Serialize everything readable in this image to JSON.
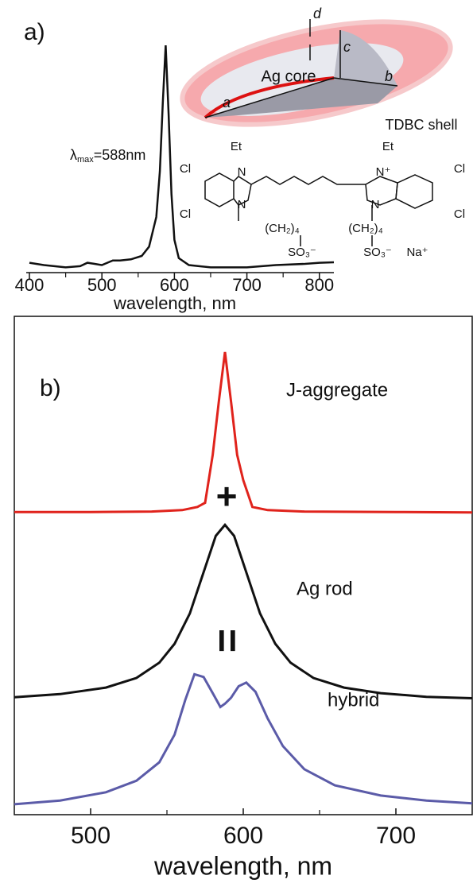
{
  "chart_data": [
    {
      "type": "line",
      "panel_label": "a)",
      "xlabel": "wavelength, nm",
      "xlim": [
        400,
        820
      ],
      "ylim": [
        0,
        1
      ],
      "xticks": [
        400,
        500,
        600,
        700,
        800
      ],
      "xminorticks": [
        450,
        550,
        650,
        750
      ],
      "annotation": {
        "symbol": "λ",
        "sub": "max",
        "text": "=588nm"
      },
      "x": [
        400,
        420,
        450,
        470,
        480,
        490,
        500,
        515,
        525,
        540,
        555,
        565,
        575,
        580,
        584,
        588,
        592,
        596,
        600,
        606,
        620,
        650,
        700,
        740,
        780,
        800,
        820
      ],
      "series": [
        {
          "color": "#111111",
          "values": [
            0.05,
            0.04,
            0.03,
            0.035,
            0.05,
            0.045,
            0.04,
            0.06,
            0.06,
            0.065,
            0.08,
            0.12,
            0.25,
            0.45,
            0.75,
            1.0,
            0.7,
            0.35,
            0.15,
            0.07,
            0.04,
            0.03,
            0.03,
            0.04,
            0.045,
            0.05,
            0.052
          ]
        }
      ]
    },
    {
      "type": "line",
      "panel_label": "b)",
      "xlabel": "wavelength, nm",
      "xlim": [
        450,
        750
      ],
      "ylim": [
        0,
        1
      ],
      "xticks": [
        500,
        600,
        700
      ],
      "xminorticks": [
        550,
        650
      ],
      "operators": [
        "+",
        "="
      ],
      "series": [
        {
          "name": "J-aggregate",
          "color": "#e0231c",
          "x": [
            450,
            500,
            540,
            560,
            570,
            575,
            580,
            584,
            588,
            592,
            596,
            600,
            606,
            616,
            640,
            700,
            750
          ],
          "values": [
            0.648,
            0.648,
            0.649,
            0.652,
            0.659,
            0.668,
            0.772,
            0.888,
            0.995,
            0.888,
            0.772,
            0.717,
            0.659,
            0.652,
            0.649,
            0.648,
            0.647
          ]
        },
        {
          "name": "Ag rod",
          "color": "#111111",
          "x": [
            450,
            480,
            510,
            530,
            545,
            555,
            565,
            575,
            582,
            588,
            594,
            601,
            611,
            621,
            631,
            646,
            666,
            690,
            720,
            750
          ],
          "values": [
            0.246,
            0.253,
            0.267,
            0.288,
            0.321,
            0.362,
            0.428,
            0.527,
            0.596,
            0.62,
            0.596,
            0.527,
            0.428,
            0.362,
            0.321,
            0.288,
            0.267,
            0.255,
            0.247,
            0.244
          ]
        },
        {
          "name": "hybrid",
          "color": "#5b5ba8",
          "x": [
            450,
            480,
            510,
            530,
            545,
            555,
            562,
            568,
            574,
            580,
            585,
            588,
            592,
            597,
            602,
            608,
            616,
            626,
            640,
            660,
            690,
            720,
            750
          ],
          "values": [
            0.014,
            0.022,
            0.04,
            0.065,
            0.105,
            0.165,
            0.24,
            0.296,
            0.29,
            0.255,
            0.225,
            0.232,
            0.245,
            0.27,
            0.278,
            0.258,
            0.2,
            0.14,
            0.09,
            0.055,
            0.033,
            0.022,
            0.016
          ]
        }
      ]
    }
  ],
  "inset": {
    "core": "Ag core",
    "shell": "TDBC shell",
    "axes": [
      "a",
      "b",
      "c",
      "d"
    ],
    "molecule": [
      "Et",
      "Et",
      "Cl",
      "Cl",
      "N",
      "N",
      "N⁺",
      "N",
      "(CH₂)₄",
      "(CH₂)₄",
      "SO₃⁻",
      "SO₃⁻",
      "Na⁺",
      "Cl",
      "Cl"
    ]
  }
}
